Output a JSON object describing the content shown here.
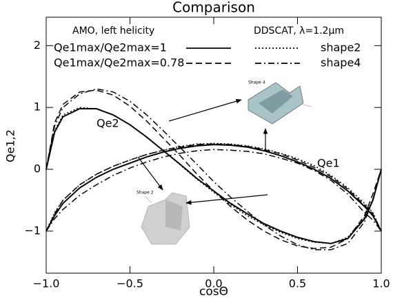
{
  "chart_data": {
    "type": "line",
    "title": "Comparison",
    "x_label": "cosΘ",
    "y_label": "Qe1,2",
    "xlim": [
      -1,
      1
    ],
    "ylim": [
      -1.68,
      2.46
    ],
    "xticks": [
      {
        "value": -1,
        "label": "−1.0"
      },
      {
        "value": -0.5,
        "label": "−0.5"
      },
      {
        "value": 0,
        "label": "0.0"
      },
      {
        "value": 0.5,
        "label": "0.5"
      },
      {
        "value": 1,
        "label": "1.0"
      }
    ],
    "yticks": [
      {
        "value": -1,
        "label": "−1"
      },
      0,
      1,
      2
    ],
    "legend_headers": [
      "AMO, left helicity",
      "DDSCAT, λ=1.2μm"
    ],
    "legend": [
      {
        "label": "Qe1max/Qe2max=1",
        "dash": "solid"
      },
      {
        "label": "Qe1max/Qe2max=0.78",
        "dash": "dashed"
      },
      {
        "label": "shape2",
        "dash": "dotted"
      },
      {
        "label": "shape4",
        "dash": "dashdot"
      }
    ],
    "annotations": [
      "Qe2",
      "Qe1",
      "Shape 4",
      "Shape 2"
    ],
    "color": "#000000",
    "x": [
      -1,
      -0.95,
      -0.9,
      -0.8,
      -0.7,
      -0.6,
      -0.5,
      -0.4,
      -0.3,
      -0.2,
      -0.1,
      0,
      0.1,
      0.2,
      0.3,
      0.4,
      0.5,
      0.6,
      0.7,
      0.8,
      0.9,
      0.95,
      1
    ],
    "series": [
      {
        "dash": "solid",
        "values": [
          0,
          0.6,
          0.85,
          0.98,
          0.98,
          0.88,
          0.72,
          0.52,
          0.3,
          0.08,
          -0.15,
          -0.35,
          -0.55,
          -0.72,
          -0.88,
          -1.0,
          -1.1,
          -1.17,
          -1.2,
          -1.12,
          -0.8,
          -0.5,
          0
        ]
      },
      {
        "dash": "solid",
        "values": [
          -1,
          -0.75,
          -0.55,
          -0.3,
          -0.13,
          0,
          0.1,
          0.2,
          0.28,
          0.34,
          0.38,
          0.4,
          0.39,
          0.36,
          0.3,
          0.22,
          0.12,
          0,
          -0.15,
          -0.35,
          -0.6,
          -0.75,
          -1
        ]
      },
      {
        "dash": "dashed",
        "values": [
          0,
          0.75,
          1.05,
          1.25,
          1.28,
          1.2,
          1.02,
          0.78,
          0.5,
          0.22,
          -0.08,
          -0.35,
          -0.6,
          -0.82,
          -1.0,
          -1.14,
          -1.24,
          -1.28,
          -1.26,
          -1.12,
          -0.75,
          -0.4,
          0
        ]
      },
      {
        "dash": "dashed",
        "values": [
          -1,
          -0.72,
          -0.5,
          -0.25,
          -0.08,
          0.05,
          0.15,
          0.24,
          0.31,
          0.36,
          0.4,
          0.41,
          0.4,
          0.37,
          0.32,
          0.25,
          0.15,
          0.03,
          -0.12,
          -0.32,
          -0.58,
          -0.72,
          -1
        ]
      },
      {
        "dash": "dotted",
        "values": [
          0,
          0.62,
          0.88,
          1.0,
          0.98,
          0.88,
          0.72,
          0.52,
          0.3,
          0.07,
          -0.16,
          -0.37,
          -0.57,
          -0.75,
          -0.9,
          -1.02,
          -1.12,
          -1.18,
          -1.2,
          -1.1,
          -0.78,
          -0.48,
          0
        ]
      },
      {
        "dash": "dotted",
        "values": [
          -1,
          -0.7,
          -0.5,
          -0.25,
          -0.08,
          0.05,
          0.15,
          0.24,
          0.31,
          0.37,
          0.41,
          0.42,
          0.41,
          0.38,
          0.33,
          0.26,
          0.17,
          0.06,
          -0.1,
          -0.3,
          -0.55,
          -0.7,
          -1
        ]
      },
      {
        "dash": "dashdot",
        "values": [
          0,
          0.7,
          1.0,
          1.22,
          1.3,
          1.25,
          1.1,
          0.88,
          0.62,
          0.35,
          0.08,
          -0.2,
          -0.45,
          -0.68,
          -0.9,
          -1.08,
          -1.22,
          -1.3,
          -1.3,
          -1.2,
          -0.85,
          -0.5,
          0
        ]
      },
      {
        "dash": "dashdot",
        "values": [
          -1,
          -0.8,
          -0.65,
          -0.42,
          -0.25,
          -0.1,
          0.02,
          0.12,
          0.2,
          0.26,
          0.3,
          0.32,
          0.31,
          0.29,
          0.25,
          0.18,
          0.1,
          -0.02,
          -0.18,
          -0.4,
          -0.7,
          -0.82,
          -1
        ]
      }
    ]
  }
}
